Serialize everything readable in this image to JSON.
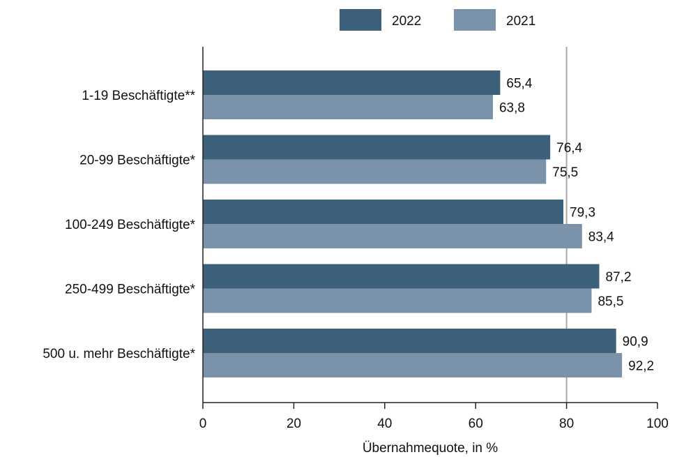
{
  "chart_data": {
    "type": "bar",
    "orientation": "horizontal",
    "categories": [
      "1-19 Beschäftigte**",
      "20-99 Beschäftigte*",
      "100-249 Beschäftigte*",
      "250-499 Beschäftigte*",
      "500 u. mehr Beschäftigte*"
    ],
    "series": [
      {
        "name": "2022",
        "color": "#3d617b",
        "values": [
          65.4,
          76.4,
          79.3,
          87.2,
          90.9
        ],
        "labels": [
          "65,4",
          "76,4",
          "79,3",
          "87,2",
          "90,9"
        ]
      },
      {
        "name": "2021",
        "color": "#7a92aa",
        "values": [
          63.8,
          75.5,
          83.4,
          85.5,
          92.2
        ],
        "labels": [
          "63,8",
          "75,5",
          "83,4",
          "85,5",
          "92,2"
        ]
      }
    ],
    "xlim": [
      0,
      100
    ],
    "xticks": [
      0,
      20,
      40,
      60,
      80,
      100
    ],
    "xlabel": "Übernahmequote, in %",
    "ylabel": "",
    "reference_line": {
      "x": 80,
      "color": "#a8a8a8"
    },
    "grid": false,
    "legend": {
      "placement": "top-center"
    }
  }
}
